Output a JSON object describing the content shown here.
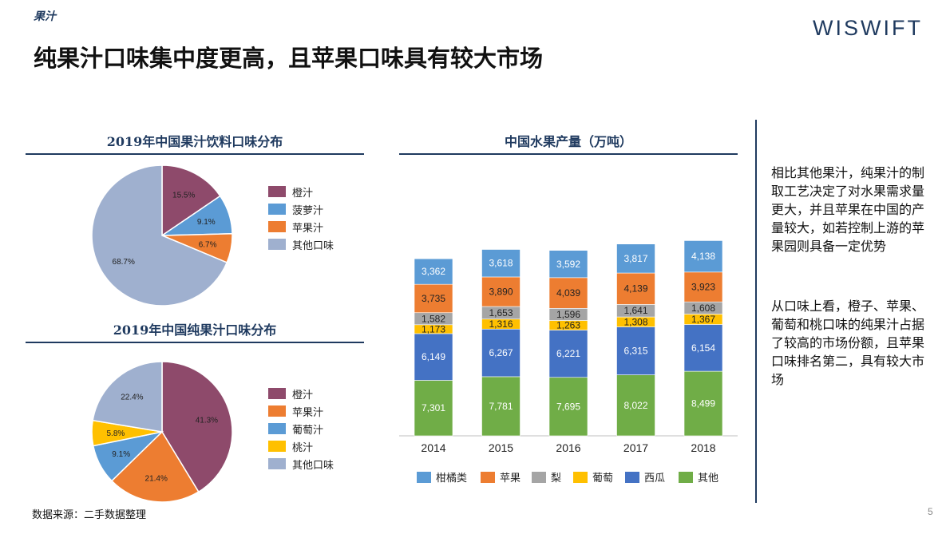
{
  "header": {
    "section_tag": "果汁",
    "brand": "WISWIFT",
    "title": "纯果汁口味集中度更高，且苹果口味具有较大市场"
  },
  "colors": {
    "navy": "#1f3a5f",
    "maroon": "#8e4a6b",
    "sky": "#5b9bd5",
    "orange": "#ed7d31",
    "lilac": "#9fb0cf",
    "gray": "#a5a5a5",
    "yellow": "#ffc000",
    "royal": "#4472c4",
    "green": "#70ad47"
  },
  "side_text": {
    "para1": "相比其他果汁，纯果汁的制取工艺决定了对水果需求量更大，并且苹果在中国的产量较大，如若控制上游的苹果园则具备一定优势",
    "para2": "从口味上看，橙子、苹果、葡萄和桃口味的纯果汁占据了较高的市场份额，且苹果口味排名第二，具有较大市场"
  },
  "footer": {
    "source": "数据来源：二手数据整理",
    "page": "5"
  },
  "chart_data": [
    {
      "type": "pie",
      "title": "2019年中国果汁饮料口味分布",
      "slices": [
        {
          "label": "橙汁",
          "value": 15.5,
          "display": "15.5%",
          "color": "#8e4a6b"
        },
        {
          "label": "菠萝汁",
          "value": 9.1,
          "display": "9.1%",
          "color": "#5b9bd5"
        },
        {
          "label": "苹果汁",
          "value": 6.7,
          "display": "6.7%",
          "color": "#ed7d31"
        },
        {
          "label": "其他口味",
          "value": 68.7,
          "display": "68.7%",
          "color": "#9fb0cf"
        }
      ],
      "legend_position": "right"
    },
    {
      "type": "pie",
      "title": "2019年中国纯果汁口味分布",
      "slices": [
        {
          "label": "橙汁",
          "value": 41.3,
          "display": "41.3%",
          "color": "#8e4a6b"
        },
        {
          "label": "苹果汁",
          "value": 21.4,
          "display": "21.4%",
          "color": "#ed7d31"
        },
        {
          "label": "葡萄汁",
          "value": 9.1,
          "display": "9.1%",
          "color": "#5b9bd5"
        },
        {
          "label": "桃汁",
          "value": 5.8,
          "display": "5.8%",
          "color": "#ffc000"
        },
        {
          "label": "其他口味",
          "value": 22.4,
          "display": "22.4%",
          "color": "#9fb0cf"
        }
      ],
      "legend_position": "right"
    },
    {
      "type": "bar",
      "stacked": true,
      "title": "中国水果产量（万吨）",
      "categories": [
        "2014",
        "2015",
        "2016",
        "2017",
        "2018"
      ],
      "series": [
        {
          "name": "其他",
          "color": "#70ad47",
          "values": [
            7301,
            7781,
            7695,
            8022,
            8499
          ],
          "labels": [
            "7,301",
            "7,781",
            "7,695",
            "8,022",
            "8,499"
          ]
        },
        {
          "name": "西瓜",
          "color": "#4472c4",
          "values": [
            6149,
            6267,
            6221,
            6315,
            6154
          ],
          "labels": [
            "6,149",
            "6,267",
            "6,221",
            "6,315",
            "6,154"
          ]
        },
        {
          "name": "葡萄",
          "color": "#ffc000",
          "values": [
            1173,
            1316,
            1263,
            1308,
            1367
          ],
          "labels": [
            "1,173",
            "1,316",
            "1,263",
            "1,308",
            "1,367"
          ]
        },
        {
          "name": "梨",
          "color": "#a5a5a5",
          "values": [
            1582,
            1653,
            1596,
            1641,
            1608
          ],
          "labels": [
            "1,582",
            "1,653",
            "1,596",
            "1,641",
            "1,608"
          ]
        },
        {
          "name": "苹果",
          "color": "#ed7d31",
          "values": [
            3735,
            3890,
            4039,
            4139,
            3923
          ],
          "labels": [
            "3,735",
            "3,890",
            "4,039",
            "4,139",
            "3,923"
          ]
        },
        {
          "name": "柑橘类",
          "color": "#5b9bd5",
          "values": [
            3362,
            3618,
            3592,
            3817,
            4138
          ],
          "labels": [
            "3,362",
            "3,618",
            "3,592",
            "3,817",
            "4,138"
          ]
        }
      ],
      "legend_order": [
        "柑橘类",
        "苹果",
        "梨",
        "葡萄",
        "西瓜",
        "其他"
      ],
      "legend_position": "bottom",
      "grid": false
    }
  ]
}
